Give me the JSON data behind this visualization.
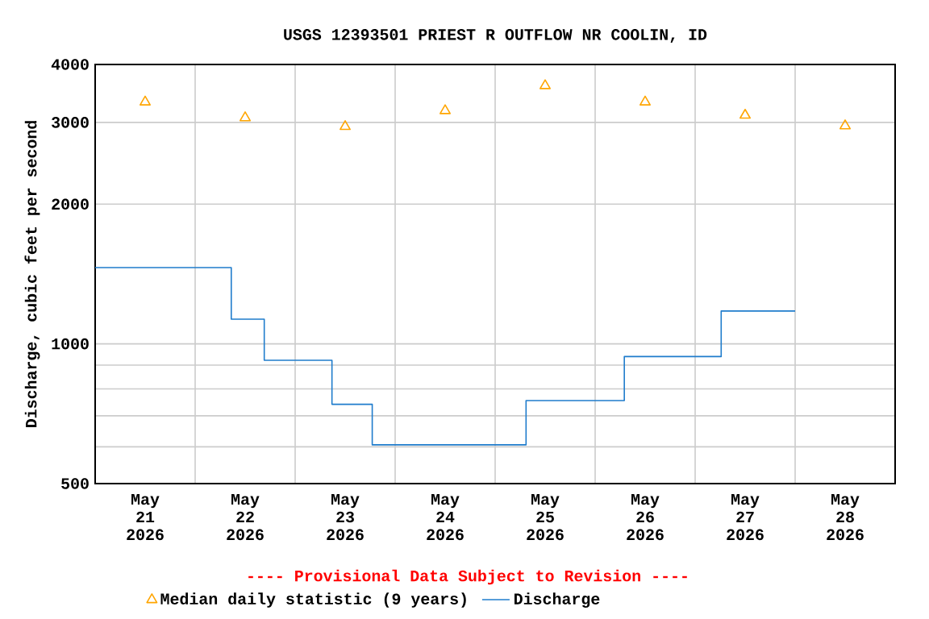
{
  "chart_data": {
    "type": "step",
    "title": "USGS 12393501 PRIEST R OUTFLOW NR COOLIN, ID",
    "ylabel": "Discharge, cubic feet per second",
    "annotations": [
      "---- Provisional Data Subject to Revision ----"
    ],
    "log": true,
    "grid": true,
    "legend": "bottom",
    "xlim": [
      "2026-05-21T00:00",
      "2026-05-29T00:00"
    ],
    "xticks": [
      {
        "value": "2026-05-21T12:00",
        "label": "May 21 2026"
      },
      {
        "value": "2026-05-22T12:00",
        "label": "May 22 2026"
      },
      {
        "value": "2026-05-23T12:00",
        "label": "May 23 2026"
      },
      {
        "value": "2026-05-24T12:00",
        "label": "May 24 2026"
      },
      {
        "value": "2026-05-25T12:00",
        "label": "May 25 2026"
      },
      {
        "value": "2026-05-26T12:00",
        "label": "May 26 2026"
      },
      {
        "value": "2026-05-27T12:00",
        "label": "May 27 2026"
      },
      {
        "value": "2026-05-28T12:00",
        "label": "May 28 2026"
      },
      {
        "value": "2026-05-22T00:00",
        "label": null
      },
      {
        "value": "2026-05-23T00:00",
        "label": null
      },
      {
        "value": "2026-05-24T00:00",
        "label": null
      },
      {
        "value": "2026-05-25T00:00",
        "label": null
      },
      {
        "value": "2026-05-26T00:00",
        "label": null
      },
      {
        "value": "2026-05-27T00:00",
        "label": null
      },
      {
        "value": "2026-05-28T00:00",
        "label": null
      }
    ],
    "ylim": [
      500,
      4000
    ],
    "yticks": [
      500,
      {
        "value": 600,
        "label": null
      },
      {
        "value": 700,
        "label": null
      },
      {
        "value": 800,
        "label": null
      },
      {
        "value": 900,
        "label": null
      },
      1000,
      2000,
      3000,
      4000
    ],
    "series": [
      {
        "name": "Median daily statistic (9 years)",
        "type": "scatter",
        "marker": "triangle",
        "color": "#ffa500",
        "x": [
          "2026-05-21T12:00",
          "2026-05-22T12:00",
          "2026-05-23T12:00",
          "2026-05-24T12:00",
          "2026-05-25T12:00",
          "2026-05-26T12:00",
          "2026-05-27T12:00",
          "2026-05-28T12:00"
        ],
        "values": [
          3320,
          3070,
          2940,
          3180,
          3600,
          3320,
          3110,
          2950
        ]
      },
      {
        "name": "Discharge",
        "marker": "none",
        "color": "#1f7ccc",
        "x": [
          "2026-05-21T00:00",
          "2026-05-22T08:40",
          "2026-05-22T16:35",
          "2026-05-23T08:50",
          "2026-05-23T18:30",
          "2026-05-25T07:25",
          "2026-05-26T07:00",
          "2026-05-27T06:15",
          "2026-05-28T00:00"
        ],
        "values": [
          1460,
          1130,
          922,
          741,
          606,
          755,
          939,
          1177,
          1177
        ]
      }
    ]
  }
}
